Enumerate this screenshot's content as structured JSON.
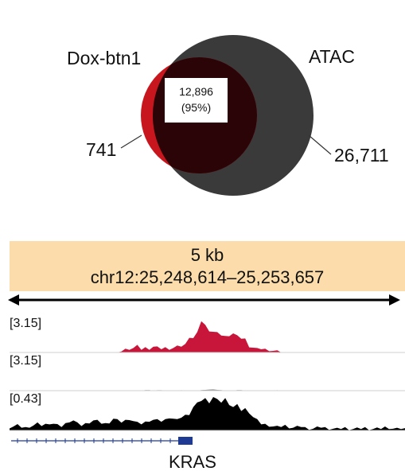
{
  "venn": {
    "set_a": {
      "name": "Dox-btn1",
      "unique_count": "741",
      "color": "#c8161e"
    },
    "set_b": {
      "name": "ATAC",
      "unique_count": "26,711",
      "color": "#3a3a3a"
    },
    "overlap": {
      "count": "12,896",
      "percent": "(95%)",
      "color": "#2a0406"
    }
  },
  "browser": {
    "scale_label": "5 kb",
    "locus": "chr12:25,248,614–25,253,657",
    "tracks": [
      {
        "range": "[3.15]",
        "color": "#c8163a",
        "profile": [
          0,
          0,
          0,
          0,
          0,
          0,
          0,
          0,
          0,
          0,
          0,
          0,
          0,
          0,
          0,
          0,
          0,
          0,
          0,
          0,
          0,
          0,
          0,
          0,
          0,
          0,
          0,
          0,
          0.05,
          0.1,
          0.12,
          0.14,
          0.2,
          0.1,
          0.15,
          0.12,
          0.18,
          0.15,
          0.12,
          0.15,
          0.12,
          0.14,
          0.18,
          0.2,
          0.25,
          0.5,
          0.45,
          0.6,
          1.0,
          0.85,
          0.7,
          0.65,
          0.6,
          0.55,
          0.5,
          0.55,
          0.6,
          0.5,
          0.45,
          0.42,
          0.2,
          0.15,
          0.1,
          0.12,
          0.1,
          0.08,
          0.05,
          0.03,
          0,
          0,
          0.02,
          0,
          0,
          0,
          0,
          0,
          0,
          0,
          0,
          0,
          0,
          0,
          0,
          0,
          0,
          0,
          0,
          0,
          0,
          0,
          0,
          0,
          0,
          0,
          0,
          0,
          0,
          0,
          0,
          0
        ]
      },
      {
        "range": "[3.15]",
        "color": "#8a8a8a",
        "profile": [
          0,
          0,
          0,
          0,
          0,
          0,
          0,
          0,
          0,
          0,
          0,
          0,
          0,
          0,
          0,
          0,
          0,
          0,
          0,
          0,
          0,
          0,
          0,
          0,
          0,
          0,
          0,
          0,
          0,
          0,
          0,
          0,
          0,
          0,
          0.08,
          0.08,
          0,
          0.06,
          0.06,
          0,
          0,
          0,
          0,
          0.06,
          0,
          0.05,
          0,
          0,
          0.08,
          0.1,
          0.14,
          0.16,
          0.1,
          0.08,
          0,
          0,
          0,
          0.08,
          0.07,
          0,
          0,
          0,
          0,
          0,
          0,
          0,
          0,
          0.06,
          0,
          0,
          0,
          0,
          0,
          0,
          0,
          0,
          0,
          0,
          0,
          0,
          0,
          0,
          0,
          0,
          0,
          0,
          0,
          0,
          0,
          0,
          0,
          0,
          0,
          0,
          0.05,
          0.05,
          0,
          0,
          0,
          0
        ]
      },
      {
        "range": "[0.43]",
        "color": "#000000",
        "profile": [
          0.1,
          0.12,
          0.15,
          0.1,
          0.08,
          0.12,
          0.15,
          0.2,
          0.15,
          0.18,
          0.22,
          0.2,
          0.15,
          0.12,
          0.2,
          0.28,
          0.3,
          0.2,
          0.15,
          0.2,
          0.25,
          0.3,
          0.28,
          0.22,
          0.2,
          0.25,
          0.35,
          0.3,
          0.25,
          0.3,
          0.35,
          0.28,
          0.22,
          0.2,
          0.25,
          0.3,
          0.32,
          0.3,
          0.28,
          0.32,
          0.4,
          0.35,
          0.3,
          0.4,
          0.45,
          0.5,
          0.7,
          0.8,
          0.9,
          0.95,
          0.85,
          1.0,
          0.9,
          0.85,
          0.95,
          0.8,
          0.7,
          0.75,
          0.6,
          0.65,
          0.55,
          0.4,
          0.3,
          0.2,
          0.18,
          0.15,
          0.12,
          0.1,
          0.12,
          0.15,
          0.1,
          0.08,
          0.1,
          0.12,
          0.08,
          0.06,
          0.05,
          0.08,
          0.1,
          0.08,
          0.06,
          0.05,
          0.04,
          0.06,
          0.08,
          0.05,
          0.04,
          0.05,
          0.06,
          0.08,
          0.05,
          0.04,
          0.05,
          0.06,
          0.1,
          0.08,
          0.05,
          0.04,
          0.06,
          0.05
        ]
      }
    ],
    "gene": {
      "name": "KRAS",
      "color": "#1f3a93"
    }
  }
}
